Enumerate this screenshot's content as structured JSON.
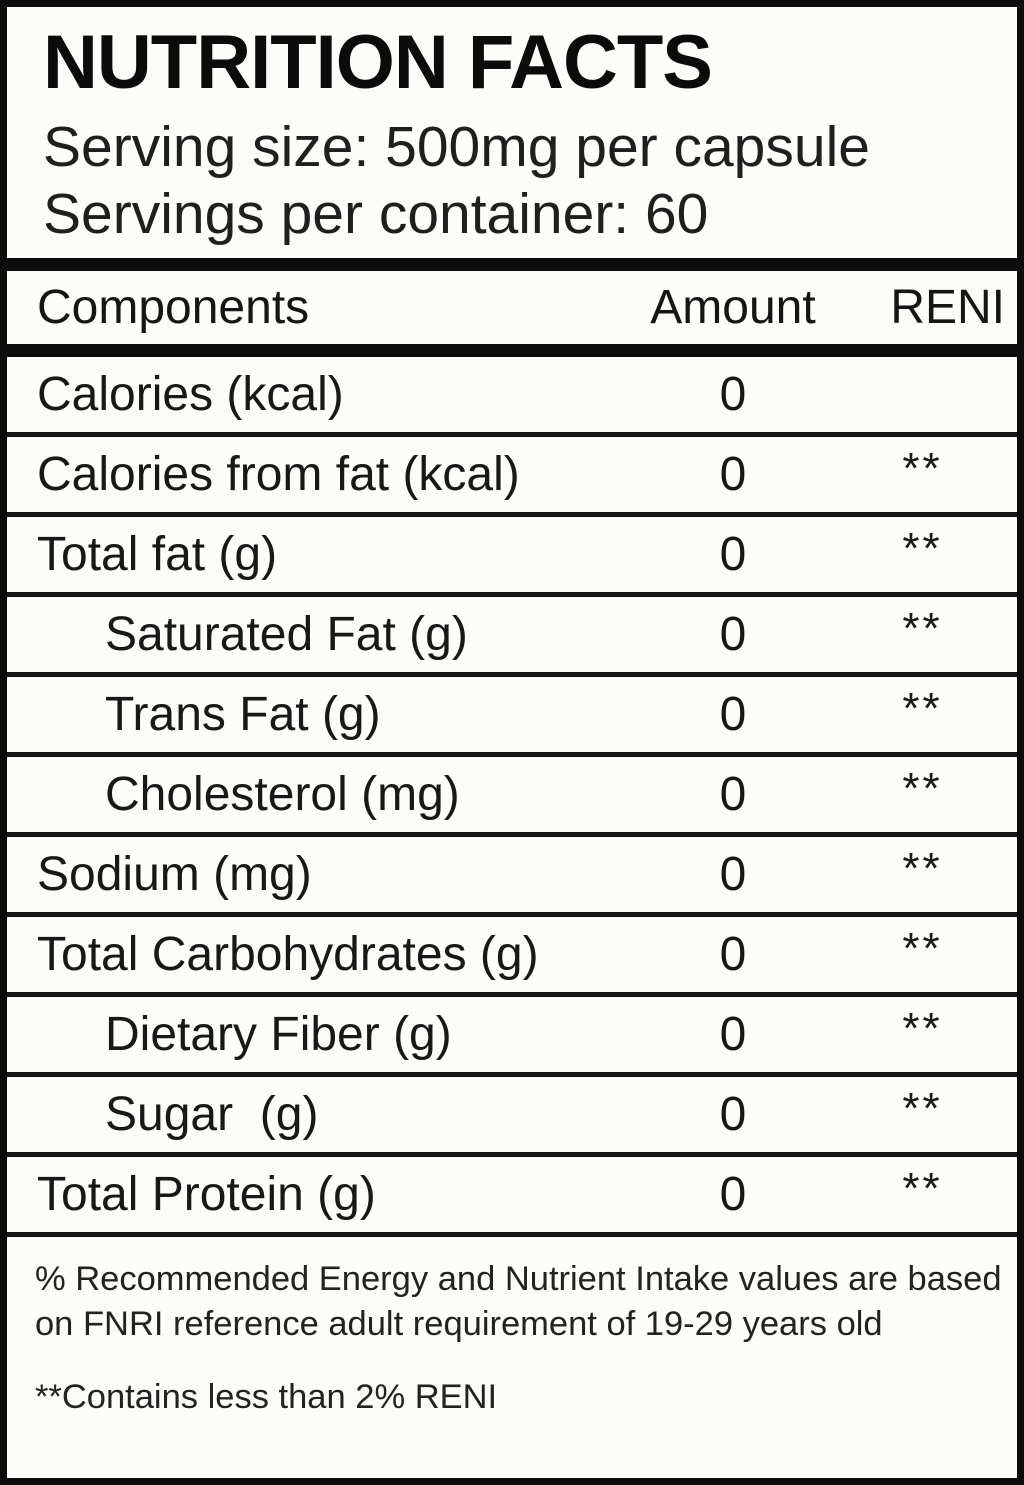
{
  "label": {
    "title": "NUTRITION FACTS",
    "serving_size": "Serving size: 500mg per capsule",
    "servings_per_container": "Servings per container: 60",
    "columns": {
      "component": "Components",
      "amount": "Amount",
      "reni": "RENI"
    },
    "rows": [
      {
        "component": "Calories (kcal)",
        "amount": "0",
        "reni": "",
        "indent": false
      },
      {
        "component": "Calories from fat (kcal)",
        "amount": "0",
        "reni": "**",
        "indent": false
      },
      {
        "component": "Total fat (g)",
        "amount": "0",
        "reni": "**",
        "indent": false
      },
      {
        "component": "Saturated Fat (g)",
        "amount": "0",
        "reni": "**",
        "indent": true
      },
      {
        "component": "Trans Fat (g)",
        "amount": "0",
        "reni": "**",
        "indent": true
      },
      {
        "component": "Cholesterol (mg)",
        "amount": "0",
        "reni": "**",
        "indent": true
      },
      {
        "component": "Sodium (mg)",
        "amount": "0",
        "reni": "**",
        "indent": false
      },
      {
        "component": "Total Carbohydrates (g)",
        "amount": "0",
        "reni": "**",
        "indent": false
      },
      {
        "component": "Dietary Fiber (g)",
        "amount": "0",
        "reni": "**",
        "indent": true
      },
      {
        "component": "Sugar  (g)",
        "amount": "0",
        "reni": "**",
        "indent": true
      },
      {
        "component": "Total Protein (g)",
        "amount": "0",
        "reni": "**",
        "indent": false
      }
    ],
    "footnotes": {
      "reni_note": "% Recommended Energy and Nutrient Intake values are based on FNRI reference adult requirement of 19-29 years old",
      "contains_note": "**Contains less than 2% RENI"
    },
    "colors": {
      "ink": "#181818",
      "paper": "#fcfcf9",
      "rule": "#0d0d0d"
    }
  }
}
